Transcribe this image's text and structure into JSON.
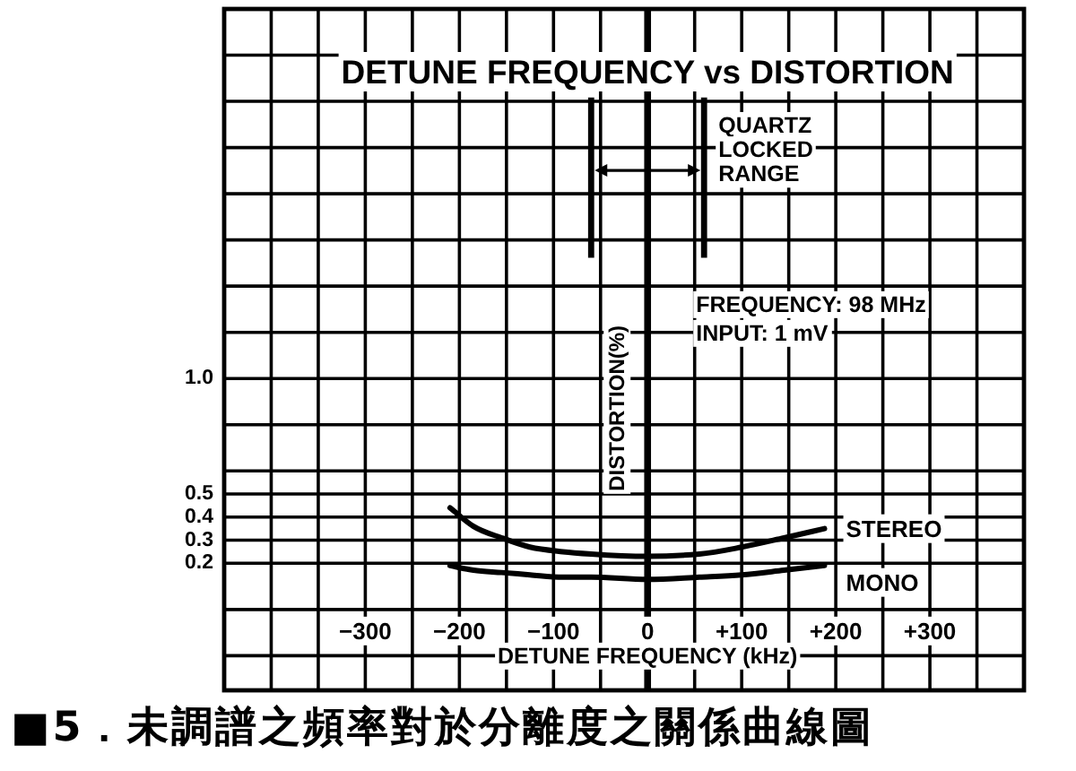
{
  "chart_data": {
    "type": "line",
    "title": "DETUNE FREQUENCY vs DISTORTION",
    "xlabel": "DETUNE FREQUENCY (kHz)",
    "ylabel": "DISTORTION(%)",
    "x": [
      -210,
      -185,
      -155,
      -125,
      -90,
      -60,
      0,
      55,
      100,
      145,
      188
    ],
    "series": [
      {
        "name": "STEREO",
        "color": "#000000",
        "values": [
          0.44,
          0.36,
          0.31,
          0.27,
          0.25,
          0.24,
          0.23,
          0.24,
          0.27,
          0.31,
          0.35
        ]
      },
      {
        "name": "MONO",
        "color": "#000000",
        "values": [
          0.19,
          0.17,
          0.16,
          0.15,
          0.14,
          0.14,
          0.13,
          0.14,
          0.15,
          0.17,
          0.19
        ]
      }
    ],
    "xlim": [
      -450,
      400
    ],
    "xticks": [
      {
        "value": -400,
        "label": null
      },
      {
        "value": -350,
        "label": null
      },
      {
        "value": -300,
        "label": "−300"
      },
      {
        "value": -250,
        "label": null
      },
      {
        "value": -200,
        "label": "−200"
      },
      {
        "value": -150,
        "label": null
      },
      {
        "value": -100,
        "label": "−100"
      },
      {
        "value": -50,
        "label": null
      },
      0,
      {
        "value": 50,
        "label": null
      },
      {
        "value": 100,
        "label": "+100"
      },
      {
        "value": 150,
        "label": null
      },
      {
        "value": 200,
        "label": "+200"
      },
      {
        "value": 250,
        "label": null
      },
      {
        "value": 300,
        "label": "+300"
      },
      {
        "value": 350,
        "label": null
      }
    ],
    "ylim": [
      -0.35,
      2.6
    ],
    "yticks": [
      {
        "value": -0.2,
        "label": null
      },
      {
        "value": 0,
        "label": null
      },
      0.2,
      0.3,
      0.4,
      0.5,
      {
        "value": 0.6,
        "label": null
      },
      {
        "value": 0.8,
        "label": null
      },
      {
        "value": 1,
        "label": "1.0"
      },
      {
        "value": 1.2,
        "label": null
      },
      {
        "value": 1.4,
        "label": null
      },
      {
        "value": 1.6,
        "label": null
      },
      {
        "value": 1.8,
        "label": null
      },
      {
        "value": 2,
        "label": null
      },
      {
        "value": 2.2,
        "label": null
      },
      {
        "value": 2.4,
        "label": null
      }
    ],
    "grid": true,
    "ref_lines": [
      {
        "axis": "x",
        "value": -60
      },
      {
        "axis": "x",
        "value": 60,
        "label": "QUARTZ LOCKED RANGE"
      }
    ],
    "annotations": [
      "FREQUENCY: 98 MHz",
      "INPUT: 1 mV",
      "■5．未調譜之頻率對於分離度之關係曲線圖"
    ]
  }
}
